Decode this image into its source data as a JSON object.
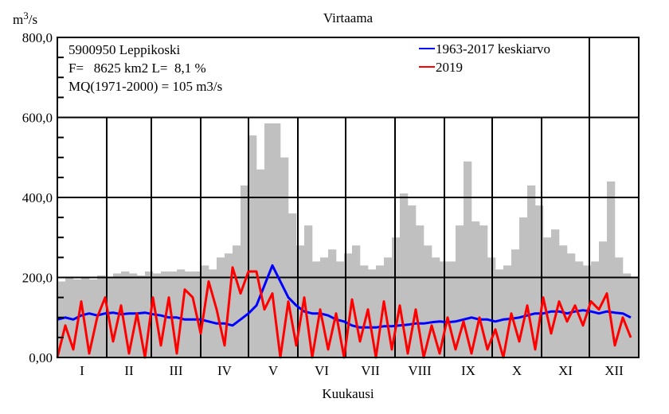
{
  "chart_data": {
    "type": "line",
    "title": "Virtaama",
    "xlabel": "Kuukausi",
    "ylabel": "m3/s",
    "ylim": [
      0,
      800
    ],
    "yticks": [
      {
        "value": 800,
        "label": "800,0"
      },
      {
        "value": 600,
        "label": "600,0"
      },
      {
        "value": 400,
        "label": "400,0"
      },
      {
        "value": 200,
        "label": "200,0"
      },
      {
        "value": 0,
        "label": "0,00"
      }
    ],
    "months": [
      "I",
      "II",
      "III",
      "IV",
      "V",
      "VI",
      "VII",
      "VIII",
      "IX",
      "X",
      "XI",
      "XII"
    ],
    "month_start_days": [
      0,
      31,
      59,
      90,
      120,
      151,
      181,
      212,
      243,
      273,
      304,
      334,
      365
    ],
    "grid": true,
    "info": {
      "line1": "5900950 Leppikoski",
      "line2": "F=   8625 km2 L=  8,1 %",
      "line3": "MQ(1971-2000) = 105 m3/s"
    },
    "legend_placement": "top-right",
    "x_days": [
      0,
      5,
      10,
      15,
      20,
      25,
      30,
      35,
      40,
      45,
      50,
      55,
      60,
      65,
      70,
      75,
      80,
      85,
      90,
      95,
      100,
      105,
      110,
      115,
      120,
      125,
      130,
      135,
      140,
      145,
      150,
      155,
      160,
      165,
      170,
      175,
      180,
      185,
      190,
      195,
      200,
      205,
      210,
      215,
      220,
      225,
      230,
      235,
      240,
      245,
      250,
      255,
      260,
      265,
      270,
      275,
      280,
      285,
      290,
      295,
      300,
      305,
      310,
      315,
      320,
      325,
      330,
      335,
      340,
      345,
      350,
      355,
      360
    ],
    "range_max": {
      "color": "#c0c0c0",
      "values": [
        190,
        200,
        195,
        200,
        195,
        205,
        200,
        210,
        215,
        210,
        205,
        215,
        210,
        215,
        215,
        220,
        215,
        215,
        230,
        220,
        250,
        260,
        280,
        430,
        555,
        470,
        585,
        585,
        500,
        360,
        280,
        330,
        240,
        250,
        270,
        240,
        260,
        280,
        230,
        220,
        230,
        250,
        300,
        410,
        380,
        330,
        280,
        250,
        240,
        240,
        330,
        490,
        340,
        330,
        250,
        220,
        230,
        270,
        350,
        430,
        380,
        300,
        320,
        280,
        260,
        240,
        230,
        240,
        290,
        440,
        250,
        210,
        200
      ]
    },
    "series": [
      {
        "name": "1963-2017 keskiarvo",
        "color": "#0000ff",
        "values": [
          95,
          100,
          95,
          105,
          110,
          105,
          110,
          112,
          108,
          110,
          110,
          112,
          108,
          105,
          100,
          100,
          95,
          95,
          95,
          90,
          85,
          85,
          80,
          95,
          110,
          130,
          180,
          230,
          190,
          150,
          130,
          115,
          110,
          110,
          105,
          95,
          90,
          80,
          75,
          75,
          75,
          78,
          78,
          80,
          82,
          85,
          85,
          88,
          90,
          88,
          90,
          95,
          100,
          95,
          95,
          90,
          95,
          97,
          100,
          105,
          110,
          110,
          115,
          115,
          110,
          115,
          118,
          115,
          110,
          115,
          112,
          110,
          100
        ]
      },
      {
        "name": "2019",
        "color": "#ff0000",
        "values": [
          0,
          80,
          20,
          140,
          10,
          100,
          150,
          40,
          130,
          10,
          110,
          0,
          150,
          30,
          150,
          10,
          170,
          150,
          60,
          190,
          120,
          30,
          225,
          160,
          215,
          215,
          120,
          160,
          0,
          140,
          30,
          150,
          0,
          120,
          20,
          110,
          0,
          145,
          40,
          120,
          0,
          140,
          20,
          130,
          10,
          120,
          0,
          80,
          10,
          100,
          20,
          90,
          10,
          100,
          20,
          70,
          0,
          110,
          40,
          130,
          20,
          150,
          60,
          140,
          90,
          130,
          80,
          140,
          120,
          160,
          30,
          100,
          50
        ]
      }
    ]
  }
}
